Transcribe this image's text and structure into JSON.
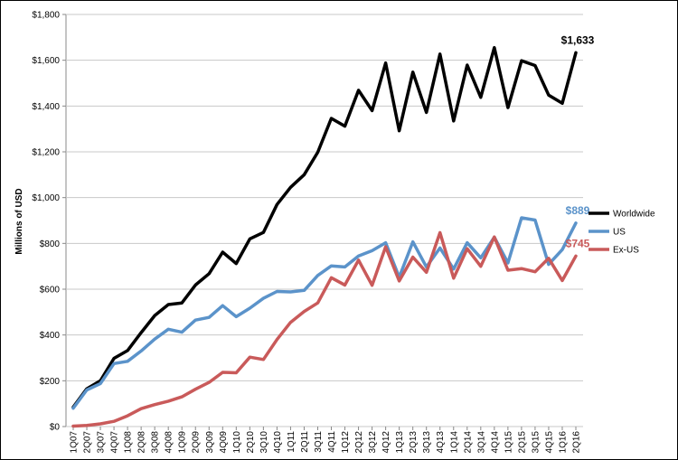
{
  "chart_data": {
    "type": "line",
    "title": "",
    "xlabel": "",
    "ylabel": "Millions of USD",
    "ylim": [
      0,
      1800
    ],
    "yticks": [
      0,
      200,
      400,
      600,
      800,
      1000,
      1200,
      1400,
      1600,
      1800
    ],
    "ytick_labels": [
      "$0",
      "$200",
      "$400",
      "$600",
      "$800",
      "$1,000",
      "$1,200",
      "$1,400",
      "$1,600",
      "$1,800"
    ],
    "grid": "horizontal",
    "legend_position": "right",
    "categories": [
      "1Q07",
      "2Q07",
      "3Q07",
      "4Q07",
      "1Q08",
      "2Q08",
      "3Q08",
      "4Q08",
      "1Q09",
      "2Q09",
      "3Q09",
      "4Q09",
      "1Q10",
      "2Q10",
      "3Q10",
      "4Q10",
      "1Q11",
      "2Q11",
      "3Q11",
      "4Q11",
      "1Q12",
      "2Q12",
      "3Q12",
      "4Q12",
      "1Q13",
      "2Q13",
      "3Q13",
      "4Q13",
      "1Q14",
      "2Q14",
      "3Q14",
      "4Q14",
      "1Q15",
      "2Q15",
      "3Q15",
      "4Q15",
      "1Q16",
      "2Q16"
    ],
    "series": [
      {
        "name": "Worldwide",
        "color": "#000000",
        "end_label": "$1,633",
        "values": [
          85,
          165,
          200,
          298,
          332,
          410,
          485,
          533,
          540,
          618,
          668,
          762,
          712,
          820,
          848,
          970,
          1045,
          1100,
          1198,
          1346,
          1312,
          1469,
          1380,
          1588,
          1292,
          1548,
          1372,
          1627,
          1335,
          1579,
          1438,
          1655,
          1393,
          1598,
          1577,
          1448,
          1412,
          1633
        ]
      },
      {
        "name": "US",
        "color": "#5B93CA",
        "end_label": "$889",
        "values": [
          80,
          160,
          188,
          275,
          285,
          330,
          382,
          425,
          412,
          465,
          477,
          528,
          480,
          517,
          560,
          590,
          588,
          595,
          660,
          702,
          697,
          745,
          768,
          803,
          652,
          807,
          697,
          780,
          688,
          803,
          737,
          827,
          715,
          912,
          902,
          708,
          773,
          889
        ]
      },
      {
        "name": "Ex-US",
        "color": "#C95A5A",
        "end_label": "$745",
        "values": [
          2,
          5,
          12,
          23,
          47,
          78,
          96,
          111,
          130,
          163,
          193,
          237,
          235,
          303,
          293,
          380,
          455,
          503,
          540,
          650,
          618,
          727,
          617,
          785,
          636,
          740,
          674,
          847,
          648,
          777,
          700,
          828,
          683,
          690,
          676,
          735,
          638,
          745
        ]
      }
    ]
  }
}
